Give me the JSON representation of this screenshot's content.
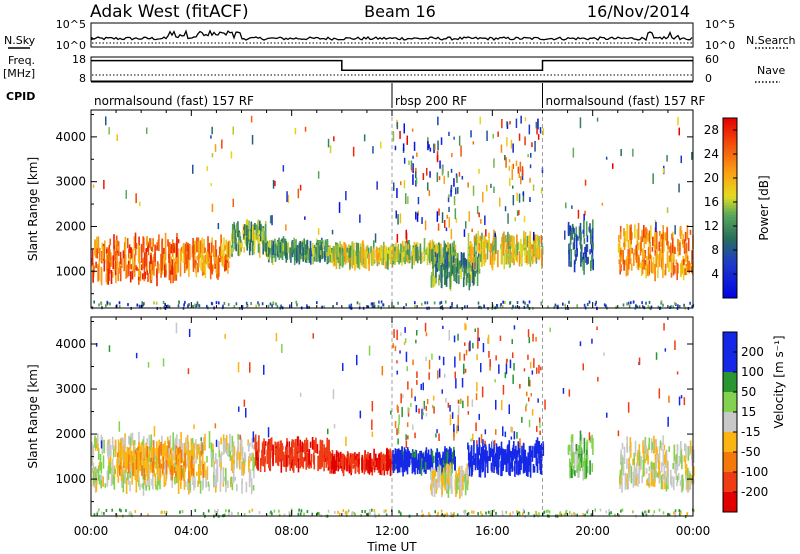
{
  "header": {
    "station": "Adak West (fitACF)",
    "beam": "Beam 16",
    "date": "16/Nov/2014"
  },
  "noise_panel": {
    "left_label": "N.Sky",
    "right_label": "N.Search",
    "left_ticks": [
      "10^5",
      "10^0"
    ],
    "right_ticks": [
      "10^5",
      "10^0"
    ]
  },
  "freq_panel": {
    "left_label_line1": "Freq.",
    "left_label_line2": "[MHz]",
    "right_label": "Nave",
    "left_ticks": [
      "18",
      "8"
    ],
    "right_ticks": [
      "60",
      "0"
    ],
    "freq_segments": [
      {
        "start": 0,
        "end": 10,
        "mhz": 16.5
      },
      {
        "start": 10,
        "end": 18,
        "mhz": 12.5
      },
      {
        "start": 18,
        "end": 24,
        "mhz": 16.5
      }
    ]
  },
  "cpid_panel": {
    "label": "CPID",
    "modes": [
      {
        "start": 0,
        "end": 12,
        "name": "normalsound (fast) 157 RF"
      },
      {
        "start": 12,
        "end": 18,
        "name": "rbsp 200 RF"
      },
      {
        "start": 18,
        "end": 24,
        "name": "normalsound (fast) 157 RF"
      }
    ]
  },
  "chart_data": [
    {
      "type": "heatmap",
      "quantity": "Power",
      "ylabel": "Slant Range [km]",
      "xlabel": "Time UT",
      "x_ticks": [
        "00:00",
        "04:00",
        "08:00",
        "12:00",
        "16:00",
        "20:00",
        "00:00"
      ],
      "xlim_hours": [
        0,
        24
      ],
      "ylim_km": [
        180,
        4600
      ],
      "y_ticks": [
        1000,
        2000,
        3000,
        4000
      ],
      "colorbar": {
        "label": "Power [dB]",
        "ticks": [
          4,
          8,
          12,
          16,
          20,
          24,
          28
        ],
        "range": [
          0,
          30
        ]
      },
      "echo_regions": [
        {
          "t0": 0.0,
          "t1": 3.5,
          "r_low": 850,
          "r_high": 1700,
          "value": 24
        },
        {
          "t0": 3.5,
          "t1": 5.5,
          "r_low": 1000,
          "r_high": 1650,
          "value": 22
        },
        {
          "t0": 5.5,
          "t1": 7.0,
          "r_low": 1450,
          "r_high": 2000,
          "value": 14
        },
        {
          "t0": 7.0,
          "t1": 9.5,
          "r_low": 1300,
          "r_high": 1600,
          "value": 12
        },
        {
          "t0": 9.5,
          "t1": 12.0,
          "r_low": 1200,
          "r_high": 1500,
          "value": 17
        },
        {
          "t0": 12.0,
          "t1": 14.5,
          "r_low": 1250,
          "r_high": 1550,
          "value": 16
        },
        {
          "t0": 13.5,
          "t1": 15.5,
          "r_low": 750,
          "r_high": 1300,
          "value": 12
        },
        {
          "t0": 15.0,
          "t1": 18.0,
          "r_low": 1200,
          "r_high": 1750,
          "value": 18
        },
        {
          "t0": 19.0,
          "t1": 20.0,
          "r_low": 1100,
          "r_high": 2000,
          "value": 9
        },
        {
          "t0": 21.0,
          "t1": 24.0,
          "r_low": 950,
          "r_high": 1900,
          "value": 22
        }
      ]
    },
    {
      "type": "heatmap",
      "quantity": "Velocity",
      "ylabel": "Slant Range [km]",
      "xlabel": "Time UT",
      "x_ticks": [
        "00:00",
        "04:00",
        "08:00",
        "12:00",
        "16:00",
        "20:00",
        "00:00"
      ],
      "xlim_hours": [
        0,
        24
      ],
      "ylim_km": [
        180,
        4600
      ],
      "y_ticks": [
        1000,
        2000,
        3000,
        4000
      ],
      "colorbar": {
        "label": "Velocity [m s^-1]",
        "ticks": [
          200,
          100,
          50,
          15,
          -15,
          -50,
          -100,
          -200
        ],
        "range": [
          -250,
          250
        ]
      },
      "echo_regions": [
        {
          "t0": 0.0,
          "t1": 6.5,
          "r_low": 800,
          "r_high": 1900,
          "value": 0
        },
        {
          "t0": 1.0,
          "t1": 4.5,
          "r_low": 1100,
          "r_high": 1700,
          "value": -40
        },
        {
          "t0": 6.5,
          "t1": 9.5,
          "r_low": 1300,
          "r_high": 1800,
          "value": -180
        },
        {
          "t0": 9.5,
          "t1": 12.0,
          "r_low": 1250,
          "r_high": 1500,
          "value": -200
        },
        {
          "t0": 12.0,
          "t1": 14.5,
          "r_low": 1250,
          "r_high": 1550,
          "value": 120
        },
        {
          "t0": 13.5,
          "t1": 15.0,
          "r_low": 750,
          "r_high": 1200,
          "value": 0
        },
        {
          "t0": 15.0,
          "t1": 18.0,
          "r_low": 1200,
          "r_high": 1750,
          "value": 150
        },
        {
          "t0": 19.0,
          "t1": 20.0,
          "r_low": 1100,
          "r_high": 1900,
          "value": 30
        },
        {
          "t0": 21.0,
          "t1": 24.0,
          "r_low": 850,
          "r_high": 1800,
          "value": 0
        }
      ]
    }
  ]
}
